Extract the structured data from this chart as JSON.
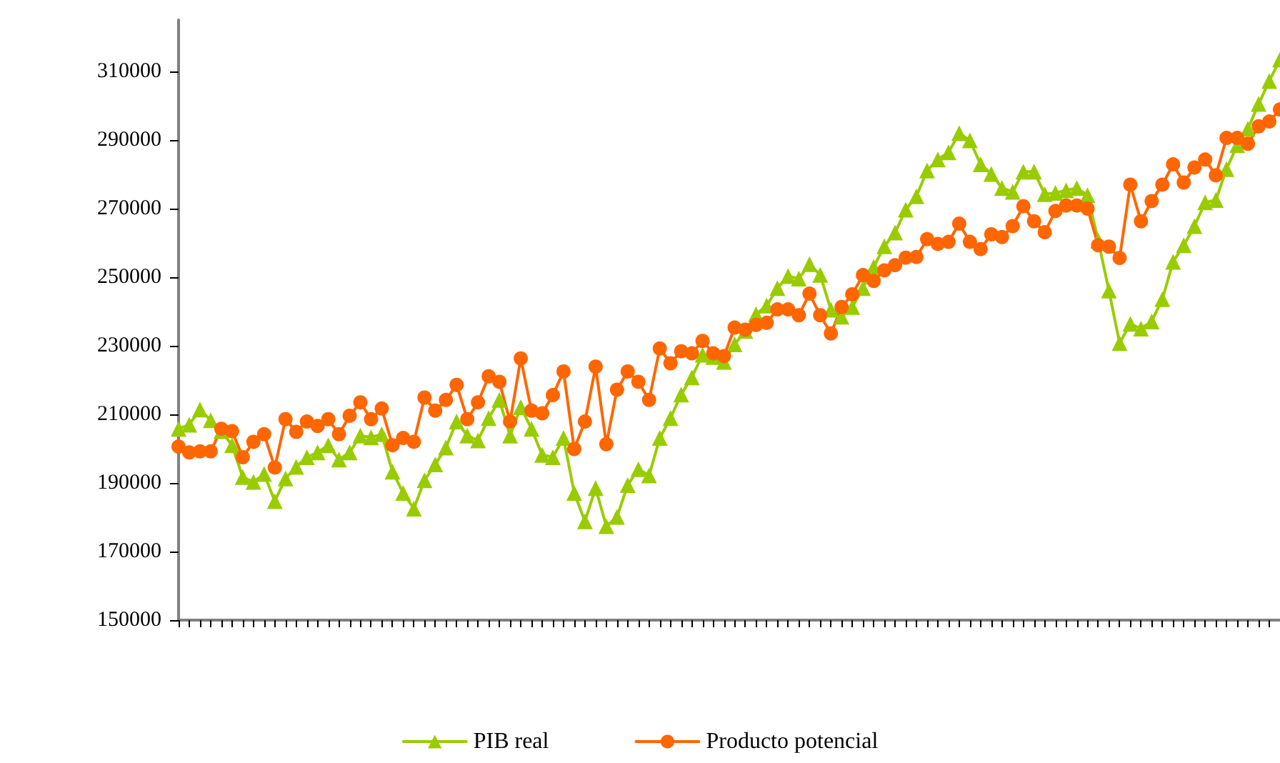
{
  "chart_data": {
    "type": "line",
    "categories": [
      null,
      null,
      null,
      null,
      null,
      null,
      null,
      null,
      null,
      null,
      null,
      null,
      null,
      null,
      null,
      null,
      null,
      null,
      null,
      null,
      null,
      null,
      null,
      null,
      null,
      null,
      null,
      null,
      null,
      null,
      null,
      null,
      null,
      null,
      null,
      null,
      null,
      null,
      null,
      null,
      null,
      null,
      null,
      null,
      null,
      null,
      null,
      null,
      null,
      null,
      null,
      null,
      null,
      null,
      null,
      null,
      null,
      null,
      null,
      null,
      null,
      null,
      null,
      null,
      null,
      null,
      null,
      null,
      null,
      null,
      null,
      null,
      null,
      null,
      null,
      null,
      null,
      null,
      null,
      null,
      null,
      null,
      null,
      null,
      null,
      null,
      null,
      null,
      null,
      null,
      null,
      null,
      null,
      null,
      null,
      null,
      null,
      null,
      null,
      null,
      null,
      null,
      null,
      null
    ],
    "series": [
      {
        "name": "PIB real",
        "color": "#99cc00",
        "marker": "triangle",
        "values": [
          205800,
          207000,
          211400,
          208300,
          205100,
          201000,
          191700,
          190300,
          192600,
          184700,
          191300,
          194700,
          197500,
          198900,
          201000,
          196800,
          198900,
          203800,
          203300,
          204200,
          193300,
          187100,
          182500,
          190800,
          195400,
          200300,
          207900,
          203800,
          202400,
          208900,
          214200,
          203800,
          212100,
          205800,
          198200,
          197500,
          203100,
          187100,
          178800,
          188500,
          177400,
          180100,
          189400,
          194000,
          192200,
          203100,
          208900,
          215800,
          220800,
          227400,
          226700,
          225300,
          230400,
          234300,
          239200,
          241700,
          246800,
          250300,
          249600,
          253800,
          250700,
          240500,
          238500,
          241300,
          246800,
          253000,
          259000,
          263000,
          269700,
          273600,
          281100,
          284300,
          286400,
          292000,
          289900,
          282900,
          280100,
          276000,
          274900,
          280800,
          280800,
          274200,
          274600,
          275300,
          276000,
          273900,
          260700,
          246100,
          230800,
          236400,
          235000,
          237100,
          243600,
          254500,
          259300,
          264900,
          271800,
          272500,
          281500,
          288500,
          293300,
          300500,
          307200,
          313500
        ]
      },
      {
        "name": "Producto potencial",
        "color": "#ff6600",
        "marker": "circle",
        "values": [
          200600,
          198900,
          199200,
          199200,
          205800,
          205100,
          197500,
          202000,
          204200,
          194500,
          208600,
          204900,
          207900,
          206600,
          208600,
          204200,
          209600,
          213500,
          208600,
          211700,
          201000,
          203100,
          202000,
          214900,
          211100,
          214200,
          218600,
          208600,
          213500,
          221100,
          219500,
          207900,
          226300,
          211100,
          210300,
          215600,
          222500,
          199900,
          207900,
          223900,
          201300,
          217200,
          222500,
          219500,
          214200,
          229200,
          224900,
          228400,
          227800,
          231400,
          227800,
          227000,
          235300,
          234700,
          236100,
          236700,
          240600,
          240600,
          238900,
          245200,
          238900,
          233600,
          241300,
          245000,
          250600,
          248900,
          252000,
          253500,
          255700,
          255900,
          261100,
          259700,
          260300,
          265600,
          260300,
          258200,
          262500,
          261700,
          264900,
          270700,
          266300,
          263100,
          269300,
          270900,
          270900,
          270000,
          259300,
          258900,
          255600,
          277000,
          266300,
          272200,
          277000,
          282900,
          277600,
          282000,
          284300,
          279700,
          290600,
          290600,
          288900,
          294000,
          295400,
          298900
        ]
      }
    ],
    "ylim": [
      150000,
      325000
    ],
    "yticks": [
      150000,
      170000,
      190000,
      210000,
      230000,
      250000,
      270000,
      290000,
      310000
    ],
    "tick_labels": "y",
    "grid": false,
    "legend": "bottom",
    "line_style": "solid"
  }
}
